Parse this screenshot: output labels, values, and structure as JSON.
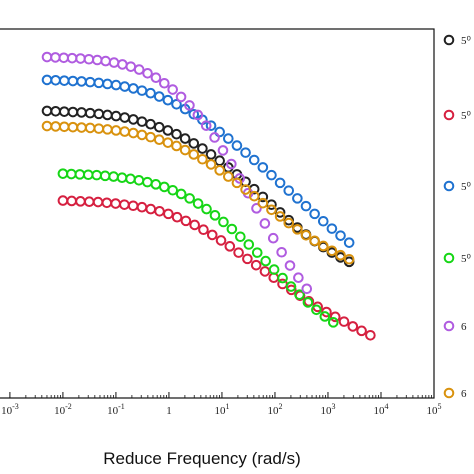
{
  "chart_data": {
    "type": "scatter",
    "title": "",
    "xlabel": "Reduce Frequency (rad/s)",
    "ylabel": "",
    "x_scale": "log",
    "xlim_log10": [
      -3.3,
      5
    ],
    "x_tick_exponents": [
      -3,
      -2,
      -1,
      0,
      1,
      2,
      3,
      4,
      5
    ],
    "x_tick_labels": [
      {
        "base": "10",
        "exp": "-3"
      },
      {
        "base": "10",
        "exp": "-2"
      },
      {
        "base": "10",
        "exp": "-1"
      },
      {
        "base": "1",
        "exp": ""
      },
      {
        "base": "10",
        "exp": "1"
      },
      {
        "base": "10",
        "exp": "2"
      },
      {
        "base": "10",
        "exp": "3"
      },
      {
        "base": "10",
        "exp": "4"
      },
      {
        "base": "10",
        "exp": "5"
      }
    ],
    "ylim": [
      0,
      1
    ],
    "grid": false,
    "legend_position": "right",
    "legend_labels": [
      "5⁰",
      "5⁰",
      "5⁰",
      "5⁰",
      "6",
      "6"
    ],
    "series": [
      {
        "color": "#222222",
        "log_x_start": -2.3,
        "log_x_end": 3.4,
        "n": 36,
        "y": [
          0.778,
          0.777,
          0.776,
          0.775,
          0.774,
          0.772,
          0.77,
          0.767,
          0.764,
          0.76,
          0.755,
          0.749,
          0.742,
          0.734,
          0.725,
          0.715,
          0.703,
          0.69,
          0.676,
          0.66,
          0.643,
          0.625,
          0.606,
          0.586,
          0.566,
          0.545,
          0.524,
          0.503,
          0.482,
          0.462,
          0.443,
          0.425,
          0.409,
          0.394,
          0.381,
          0.369
        ]
      },
      {
        "color": "#d62040",
        "log_x_start": -2.0,
        "log_x_end": 3.8,
        "n": 36,
        "y": [
          0.535,
          0.534,
          0.533,
          0.532,
          0.531,
          0.529,
          0.527,
          0.524,
          0.521,
          0.517,
          0.512,
          0.506,
          0.499,
          0.49,
          0.48,
          0.469,
          0.456,
          0.442,
          0.427,
          0.411,
          0.394,
          0.377,
          0.36,
          0.343,
          0.326,
          0.309,
          0.293,
          0.277,
          0.262,
          0.247,
          0.233,
          0.22,
          0.207,
          0.194,
          0.182,
          0.17
        ]
      },
      {
        "color": "#1f72d0",
        "log_x_start": -2.3,
        "log_x_end": 3.4,
        "n": 36,
        "y": [
          0.862,
          0.861,
          0.86,
          0.859,
          0.858,
          0.856,
          0.854,
          0.851,
          0.848,
          0.844,
          0.839,
          0.833,
          0.826,
          0.817,
          0.807,
          0.796,
          0.783,
          0.769,
          0.754,
          0.738,
          0.721,
          0.703,
          0.684,
          0.665,
          0.645,
          0.625,
          0.604,
          0.583,
          0.562,
          0.541,
          0.52,
          0.499,
          0.479,
          0.459,
          0.44,
          0.421
        ]
      },
      {
        "color": "#16d616",
        "log_x_start": -2.0,
        "log_x_end": 3.1,
        "n": 33,
        "y": [
          0.608,
          0.607,
          0.606,
          0.605,
          0.604,
          0.602,
          0.6,
          0.597,
          0.594,
          0.59,
          0.585,
          0.579,
          0.572,
          0.563,
          0.553,
          0.541,
          0.527,
          0.512,
          0.495,
          0.477,
          0.458,
          0.437,
          0.416,
          0.394,
          0.371,
          0.348,
          0.325,
          0.302,
          0.28,
          0.259,
          0.239,
          0.221,
          0.205
        ]
      },
      {
        "color": "#b05ce0",
        "log_x_start": -2.3,
        "log_x_end": 2.6,
        "n": 32,
        "y": [
          0.924,
          0.923,
          0.922,
          0.921,
          0.92,
          0.918,
          0.916,
          0.913,
          0.909,
          0.904,
          0.898,
          0.89,
          0.88,
          0.868,
          0.853,
          0.836,
          0.816,
          0.793,
          0.767,
          0.738,
          0.706,
          0.671,
          0.634,
          0.595,
          0.555,
          0.514,
          0.473,
          0.433,
          0.395,
          0.359,
          0.326,
          0.296
        ]
      },
      {
        "color": "#d9920e",
        "log_x_start": -2.3,
        "log_x_end": 3.4,
        "n": 36,
        "y": [
          0.737,
          0.736,
          0.735,
          0.734,
          0.733,
          0.732,
          0.73,
          0.728,
          0.725,
          0.722,
          0.718,
          0.713,
          0.707,
          0.7,
          0.692,
          0.683,
          0.672,
          0.66,
          0.647,
          0.633,
          0.617,
          0.6,
          0.583,
          0.565,
          0.547,
          0.528,
          0.51,
          0.492,
          0.474,
          0.457,
          0.441,
          0.426,
          0.412,
          0.399,
          0.387,
          0.376
        ]
      }
    ]
  }
}
